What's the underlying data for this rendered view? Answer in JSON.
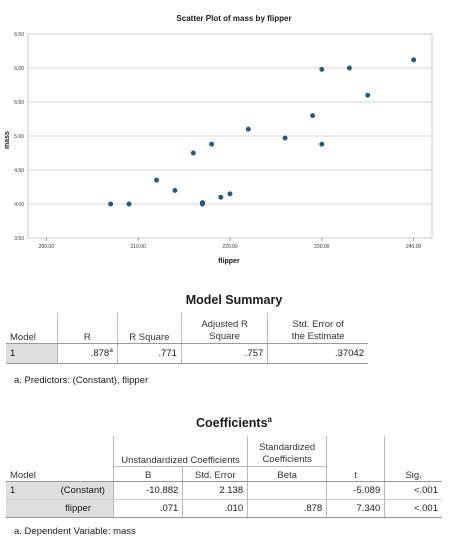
{
  "chart_data": {
    "type": "scatter",
    "title": "Scatter Plot of mass by flipper",
    "xlabel": "flipper",
    "ylabel": "mass",
    "xlim": [
      198,
      242
    ],
    "ylim": [
      3.5,
      6.5
    ],
    "xticks": [
      200,
      210,
      220,
      230,
      240
    ],
    "xtick_labels": [
      "200.00",
      "210.00",
      "220.00",
      "230.00",
      "240.00"
    ],
    "yticks": [
      3.5,
      4.0,
      4.5,
      5.0,
      5.5,
      6.0,
      6.5
    ],
    "ytick_labels": [
      "3.50",
      "4.00",
      "4.50",
      "5.00",
      "5.50",
      "6.00",
      "6.50"
    ],
    "grid": "horizontal",
    "point_color": "#1f5f8b",
    "points": [
      {
        "x": 207,
        "y": 4.0
      },
      {
        "x": 209,
        "y": 4.0
      },
      {
        "x": 212,
        "y": 4.35
      },
      {
        "x": 214,
        "y": 4.2
      },
      {
        "x": 216,
        "y": 4.75
      },
      {
        "x": 217,
        "y": 4.02
      },
      {
        "x": 217,
        "y": 4.0
      },
      {
        "x": 218,
        "y": 4.88
      },
      {
        "x": 219,
        "y": 4.1
      },
      {
        "x": 220,
        "y": 4.15
      },
      {
        "x": 222,
        "y": 5.1
      },
      {
        "x": 226,
        "y": 4.97
      },
      {
        "x": 229,
        "y": 5.3
      },
      {
        "x": 230,
        "y": 5.98
      },
      {
        "x": 230,
        "y": 4.88
      },
      {
        "x": 233,
        "y": 6.0
      },
      {
        "x": 235,
        "y": 5.6
      },
      {
        "x": 240,
        "y": 6.12
      }
    ]
  },
  "model_summary": {
    "title": "Model Summary",
    "headers": {
      "model": "Model",
      "r": "R",
      "r_square": "R Square",
      "adj_r_square_line1": "Adjusted R",
      "adj_r_square_line2": "Square",
      "std_err_line1": "Std. Error of",
      "std_err_line2": "the Estimate"
    },
    "row": {
      "model": "1",
      "r": ".878",
      "r_sup": "a",
      "r_square": ".771",
      "adj_r_square": ".757",
      "std_err": ".37042"
    },
    "footnote": "a. Predictors: (Constant), flipper"
  },
  "coefficients": {
    "title": "Coefficients",
    "title_sup": "a",
    "headers": {
      "unstd": "Unstandardized Coefficients",
      "std_line1": "Standardized",
      "std_line2": "Coefficients",
      "model": "Model",
      "b": "B",
      "std_error": "Std. Error",
      "beta": "Beta",
      "t": "t",
      "sig": "Sig."
    },
    "rows": [
      {
        "model": "1",
        "name": "(Constant)",
        "b": "-10.882",
        "std_error": "2.138",
        "beta": "",
        "t": "-5.089",
        "sig": "<.001"
      },
      {
        "model": "",
        "name": "flipper",
        "b": ".071",
        "std_error": ".010",
        "beta": ".878",
        "t": "7.340",
        "sig": "<.001"
      }
    ],
    "footnote": "a. Dependent Variable: mass"
  }
}
